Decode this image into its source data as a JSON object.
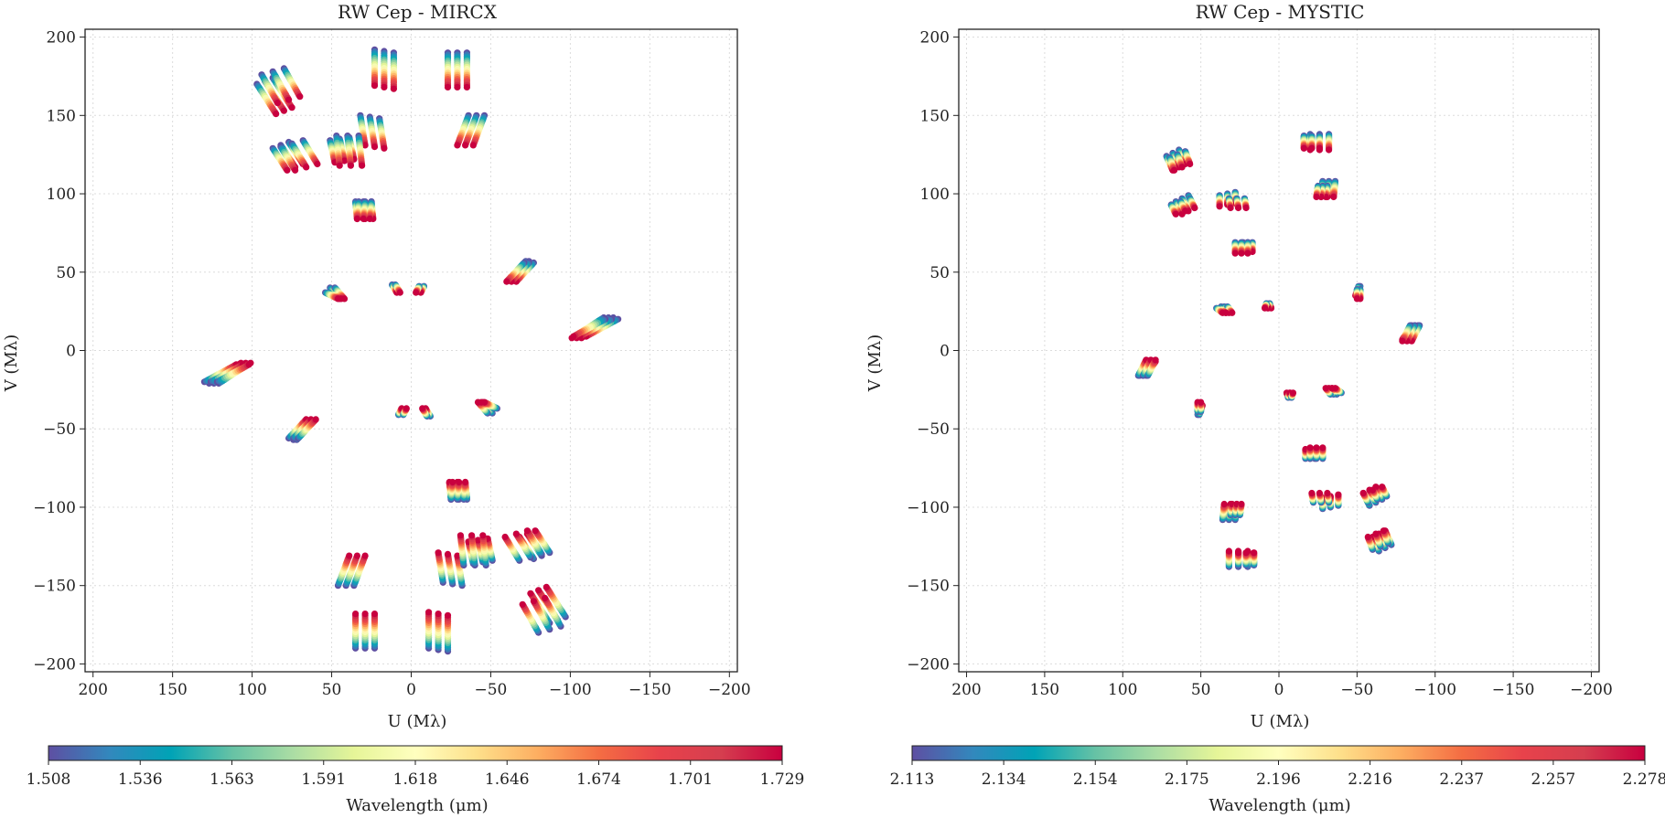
{
  "colorscale": [
    "#5e4fa2",
    "#3288bd",
    "#00a3b6",
    "#66c2a5",
    "#abdda4",
    "#e6f598",
    "#ffffbf",
    "#fee08b",
    "#fdae61",
    "#f46d43",
    "#e8424b",
    "#d53e4f",
    "#c8003f"
  ],
  "chart_data": [
    {
      "type": "scatter",
      "title": "RW Cep - MIRCX",
      "xlabel": "U (Mλ)",
      "ylabel": "V (Mλ)",
      "xlim": [
        205,
        -205
      ],
      "ylim": [
        -205,
        205
      ],
      "xticks": [
        200,
        150,
        100,
        50,
        0,
        -50,
        -100,
        -150,
        -200
      ],
      "yticks": [
        200,
        150,
        100,
        50,
        0,
        -50,
        -100,
        -150,
        -200
      ],
      "xtick_labels": [
        "200",
        "150",
        "100",
        "50",
        "0",
        "−50",
        "−100",
        "−150",
        "−200"
      ],
      "ytick_labels": [
        "200",
        "150",
        "100",
        "50",
        "0",
        "−50",
        "−100",
        "−150",
        "−200"
      ],
      "grid": true,
      "colorbar": {
        "label": "Wavelength (μm)",
        "range": [
          1.508,
          1.729
        ],
        "ticks": [
          "1.508",
          "1.536",
          "1.563",
          "1.591",
          "1.618",
          "1.646",
          "1.674",
          "1.701",
          "1.729"
        ]
      },
      "tracks": [
        {
          "u0": 97,
          "v0": 170,
          "u1": 85,
          "v1": 151,
          "n": 3,
          "du": -5,
          "dv": 2
        },
        {
          "u0": 87,
          "v0": 129,
          "u1": 78,
          "v1": 115,
          "n": 3,
          "du": -5,
          "dv": 2
        },
        {
          "u0": 51,
          "v0": 134,
          "u1": 48,
          "v1": 120,
          "n": 3,
          "du": -6,
          "dv": 1
        },
        {
          "u0": 23,
          "v0": 192,
          "u1": 23,
          "v1": 169,
          "n": 3,
          "du": -6,
          "dv": -1
        },
        {
          "u0": 32,
          "v0": 150,
          "u1": 29,
          "v1": 131,
          "n": 3,
          "du": -6,
          "dv": -1
        },
        {
          "u0": 35,
          "v0": 95,
          "u1": 34,
          "v1": 84,
          "n": 3,
          "du": -5,
          "dv": 0
        },
        {
          "u0": 51,
          "v0": 40,
          "u1": 45,
          "v1": 33,
          "n": 2,
          "du": -3,
          "dv": 0
        },
        {
          "u0": 12,
          "v0": 42,
          "u1": 9,
          "v1": 37,
          "n": 2,
          "du": -2,
          "dv": 0
        },
        {
          "u0": -74,
          "v0": 57,
          "u1": -65,
          "v1": 47,
          "n": 2,
          "du": 2,
          "dv": 0
        },
        {
          "u0": -127,
          "v0": 21,
          "u1": -107,
          "v1": 8,
          "n": 3,
          "du": 3,
          "dv": 0
        },
        {
          "u0": 130,
          "v0": -20,
          "u1": 110,
          "v1": -9,
          "n": 3,
          "du": -4,
          "dv": 0
        },
        {
          "u0": 77,
          "v0": -56,
          "u1": 66,
          "v1": -44,
          "n": 3,
          "du": -3,
          "dv": 0
        },
        {
          "u0": 8,
          "v0": -41,
          "u1": 6,
          "v1": -37,
          "n": 2,
          "du": -3,
          "dv": 0
        },
        {
          "u0": -52,
          "v0": -37,
          "u1": -44,
          "v1": -33,
          "n": 2,
          "du": -2,
          "dv": 0
        },
        {
          "u0": -25,
          "v0": -95,
          "u1": -26,
          "v1": -84,
          "n": 3,
          "du": -4,
          "dv": 0
        },
        {
          "u0": 46,
          "v0": -150,
          "u1": 39,
          "v1": -131,
          "n": 3,
          "du": -5,
          "dv": 0
        },
        {
          "u0": -33,
          "v0": -137,
          "u1": -31,
          "v1": -118,
          "n": 3,
          "du": -7,
          "dv": 0
        },
        {
          "u0": -68,
          "v0": -134,
          "u1": -59,
          "v1": -119,
          "n": 3,
          "du": -7,
          "dv": 2
        },
        {
          "u0": 35,
          "v0": -190,
          "u1": 35,
          "v1": -168,
          "n": 3,
          "du": -6,
          "dv": 0
        },
        {
          "u0": -80,
          "v0": -180,
          "u1": -70,
          "v1": -162,
          "n": 3,
          "du": -7,
          "dv": 2
        }
      ]
    },
    {
      "type": "scatter",
      "title": "RW Cep - MYSTIC",
      "xlabel": "U (Mλ)",
      "ylabel": "V (Mλ)",
      "xlim": [
        205,
        -205
      ],
      "ylim": [
        -205,
        205
      ],
      "xticks": [
        200,
        150,
        100,
        50,
        0,
        -50,
        -100,
        -150,
        -200
      ],
      "yticks": [
        200,
        150,
        100,
        50,
        0,
        -50,
        -100,
        -150,
        -200
      ],
      "xtick_labels": [
        "200",
        "150",
        "100",
        "50",
        "0",
        "−50",
        "−100",
        "−150",
        "−200"
      ],
      "ytick_labels": [
        "200",
        "150",
        "100",
        "50",
        "0",
        "−50",
        "−100",
        "−150",
        "−200"
      ],
      "grid": true,
      "colorbar": {
        "label": "Wavelength (μm)",
        "range": [
          2.113,
          2.278
        ],
        "ticks": [
          "2.113",
          "2.134",
          "2.154",
          "2.175",
          "2.196",
          "2.216",
          "2.237",
          "2.257",
          "2.278"
        ]
      },
      "tracks": [
        {
          "u0": 72,
          "v0": 124,
          "u1": 68,
          "v1": 115,
          "n": 3,
          "du": -4,
          "dv": 2
        },
        {
          "u0": 66,
          "v0": 95,
          "u1": 62,
          "v1": 87,
          "n": 3,
          "du": -4,
          "dv": 2
        },
        {
          "u0": 38,
          "v0": 99,
          "u1": 38,
          "v1": 92,
          "n": 3,
          "du": -5,
          "dv": 1
        },
        {
          "u0": 23,
          "v0": 69,
          "u1": 23,
          "v1": 63,
          "n": 3,
          "du": -3,
          "dv": 0
        },
        {
          "u0": -20,
          "v0": 138,
          "u1": -20,
          "v1": 128,
          "n": 3,
          "du": -6,
          "dv": 0
        },
        {
          "u0": -28,
          "v0": 108,
          "u1": -27,
          "v1": 98,
          "n": 3,
          "du": -4,
          "dv": 0
        },
        {
          "u0": 37,
          "v0": 28,
          "u1": 34,
          "v1": 24,
          "n": 3,
          "du": -2,
          "dv": 0
        },
        {
          "u0": 8,
          "v0": 30,
          "u1": 7,
          "v1": 27,
          "n": 2,
          "du": -2,
          "dv": 0
        },
        {
          "u0": -52,
          "v0": 41,
          "u1": -50,
          "v1": 35,
          "n": 2,
          "du": 1,
          "dv": 0
        },
        {
          "u0": -89,
          "v0": 16,
          "u1": -83,
          "v1": 7,
          "n": 3,
          "du": 2,
          "dv": 0
        },
        {
          "u0": 90,
          "v0": -16,
          "u1": 85,
          "v1": -6,
          "n": 3,
          "du": -3,
          "dv": 0
        },
        {
          "u0": 52,
          "v0": -39,
          "u1": 52,
          "v1": -33,
          "n": 2,
          "du": -2,
          "dv": 0
        },
        {
          "u0": -6,
          "v0": -30,
          "u1": -7,
          "v1": -27,
          "n": 2,
          "du": -2,
          "dv": 0
        },
        {
          "u0": -38,
          "v0": -27,
          "u1": -34,
          "v1": -24,
          "n": 2,
          "du": -2,
          "dv": 0
        },
        {
          "u0": -20,
          "v0": -69,
          "u1": -20,
          "v1": -62,
          "n": 3,
          "du": -4,
          "dv": 0
        },
        {
          "u0": -22,
          "v0": -97,
          "u1": -21,
          "v1": -91,
          "n": 3,
          "du": -5,
          "dv": 0
        },
        {
          "u0": -57,
          "v0": -97,
          "u1": -54,
          "v1": -91,
          "n": 3,
          "du": -6,
          "dv": 2
        },
        {
          "u0": 31,
          "v0": -105,
          "u1": 30,
          "v1": -98,
          "n": 3,
          "du": -3,
          "dv": 0
        },
        {
          "u0": -60,
          "v0": -127,
          "u1": -57,
          "v1": -119,
          "n": 3,
          "du": -5,
          "dv": 2
        },
        {
          "u0": 26,
          "v0": -137,
          "u1": 26,
          "v1": -129,
          "n": 3,
          "du": -5,
          "dv": 0
        }
      ]
    }
  ]
}
